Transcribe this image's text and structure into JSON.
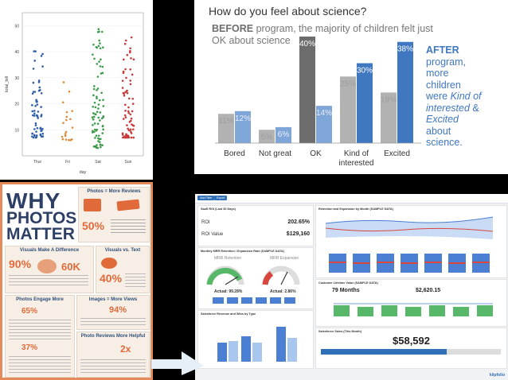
{
  "strip": {
    "ylabel": "total_bill",
    "xlabel": "day",
    "y_ticks": [
      "10",
      "20",
      "30",
      "40",
      "50"
    ],
    "categories": [
      "Thur",
      "Fri",
      "Sat",
      "Sun"
    ],
    "colors": [
      "#2f5fa8",
      "#d98a3a",
      "#3e9a4b",
      "#c63a3a"
    ]
  },
  "science": {
    "title": "How do you feel about science?",
    "before_bold": "BEFORE",
    "before_line1": " program, the majority of children felt just",
    "before_line2": "OK about science",
    "after_bold": "AFTER",
    "after_lines": [
      "program,",
      "more",
      "children",
      "were "
    ],
    "after_kind": "Kind of",
    "after_interested": "interested",
    "after_amp": " &",
    "after_excited": "Excited",
    "after_about": "about",
    "after_science": "science.",
    "before_color": "#b2b2b2",
    "after_color": "#7fa6d8",
    "highlight_before": "#6d6d6d",
    "highlight_after": "#3f77c0"
  },
  "chart_data": {
    "type": "bar",
    "title": "How do you feel about science?",
    "categories": [
      "Bored",
      "Not great",
      "OK",
      "Kind of interested",
      "Excited"
    ],
    "series": [
      {
        "name": "BEFORE",
        "values": [
          11,
          5,
          40,
          25,
          19
        ],
        "labels": [
          "11%",
          "5%",
          "40%",
          "25%",
          "19%"
        ]
      },
      {
        "name": "AFTER",
        "values": [
          12,
          6,
          14,
          30,
          38
        ],
        "labels": [
          "12%",
          "6%",
          "14%",
          "30%",
          "38%"
        ]
      }
    ],
    "ylim": [
      0,
      40
    ],
    "xlabel": "",
    "ylabel": ""
  },
  "photos": {
    "title_why": "WHY",
    "title_photos": "PHOTOS",
    "title_matter": "MATTER",
    "sec_reviews": "Photos = More Reviews",
    "reviews_pct": "50%",
    "sec_visuals": "Visuals Make A Difference",
    "visuals_pct": "90%",
    "visuals_num": "60K",
    "sec_text": "Visuals vs. Text",
    "text_pct": "40%",
    "sec_engage": "Photos Engage More",
    "engage_pct1": "65%",
    "engage_pct2": "37%",
    "sec_images": "Images = More Views",
    "images_pct": "94%",
    "sec_helpful": "Photo Reviews More Helpful",
    "helpful_num": "2x"
  },
  "dashboard": {
    "btn1": "Add Filter",
    "btn2": "Export",
    "roi_title": "SaaS ROI (Last 30 Days)",
    "roi_label": "ROI",
    "roi_value": "202.65%",
    "roi_value_label": "ROI Value",
    "roi_value_amount": "$129,160",
    "mrr_title": "Monthly MRR Retention / Expansion Rate (SAMPLE DATA)",
    "mrr_retention": "MRR Retention",
    "mrr_expansion": "MRR Expansion",
    "actual1": "Actual: 99.28%",
    "actual2": "Actual: 2.86%",
    "rev_title": "Retention and Expansion by Month (SAMPLE DATA)",
    "clv_title": "Customer Lifetime Value (SAMPLE DATA)",
    "clv_months": "79 Months",
    "clv_value": "$2,620.15",
    "sales_title": "Salesforce Revenue and Wins by Type",
    "salesp_title": "Salesforce Sales (This Month)",
    "sales_value": "$58,592",
    "brand": "klipfolio"
  }
}
